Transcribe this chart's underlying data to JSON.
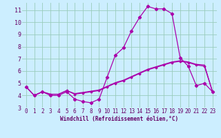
{
  "bg_color": "#cceeff",
  "line_color": "#aa00aa",
  "grid_color": "#99ccbb",
  "xlabel": "Windchill (Refroidissement éolien,°C)",
  "xlabel_color": "#660066",
  "tick_color": "#660066",
  "ylim": [
    3,
    11.6
  ],
  "xlim": [
    -0.5,
    23.5
  ],
  "yticks": [
    3,
    4,
    5,
    6,
    7,
    8,
    9,
    10,
    11
  ],
  "xticks": [
    0,
    1,
    2,
    3,
    4,
    5,
    6,
    7,
    8,
    9,
    10,
    11,
    12,
    13,
    14,
    15,
    16,
    17,
    18,
    19,
    20,
    21,
    22,
    23
  ],
  "line1_x": [
    0,
    1,
    2,
    3,
    4,
    5,
    6,
    7,
    8,
    9,
    10,
    11,
    12,
    13,
    14,
    15,
    16,
    17,
    18,
    19,
    20,
    21,
    22,
    23
  ],
  "line1_y": [
    4.7,
    4.0,
    4.3,
    4.0,
    4.0,
    4.3,
    3.7,
    3.5,
    3.4,
    3.7,
    5.5,
    7.3,
    7.9,
    9.3,
    10.4,
    11.3,
    11.1,
    11.1,
    10.7,
    7.1,
    6.4,
    4.8,
    5.0,
    4.3
  ],
  "line2_x": [
    0,
    1,
    2,
    3,
    4,
    5,
    6,
    7,
    8,
    9,
    10,
    11,
    12,
    13,
    14,
    15,
    16,
    17,
    18,
    19,
    20,
    21,
    22,
    23
  ],
  "line2_y": [
    4.7,
    4.0,
    4.3,
    4.1,
    4.1,
    4.4,
    4.1,
    4.2,
    4.3,
    4.4,
    4.7,
    5.0,
    5.2,
    5.5,
    5.8,
    6.1,
    6.3,
    6.5,
    6.7,
    6.8,
    6.7,
    6.5,
    6.4,
    4.3
  ],
  "line3_x": [
    0,
    1,
    2,
    3,
    4,
    5,
    6,
    7,
    8,
    9,
    10,
    11,
    12,
    13,
    14,
    15,
    16,
    17,
    18,
    19,
    20,
    21,
    22,
    23
  ],
  "line3_y": [
    4.7,
    4.0,
    4.3,
    4.1,
    4.1,
    4.4,
    4.15,
    4.25,
    4.35,
    4.45,
    4.75,
    5.05,
    5.25,
    5.55,
    5.85,
    6.15,
    6.35,
    6.55,
    6.75,
    6.85,
    6.75,
    6.55,
    6.5,
    4.3
  ]
}
